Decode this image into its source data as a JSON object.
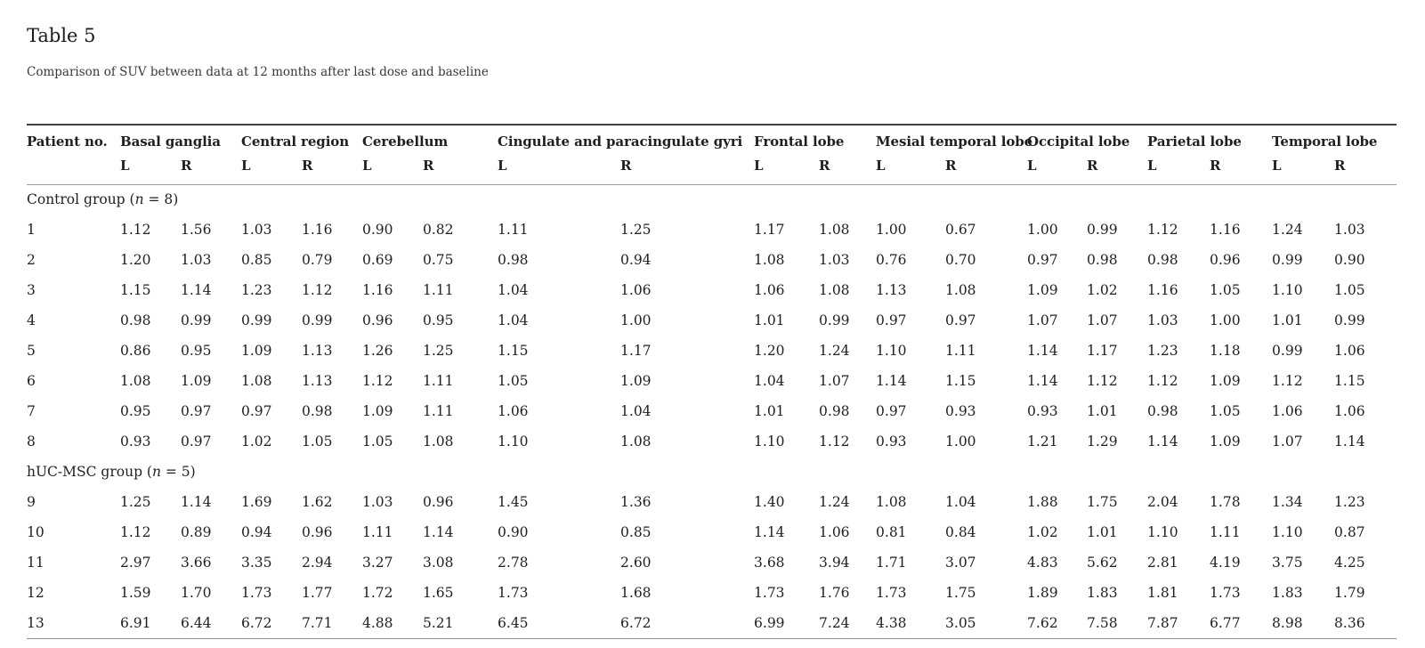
{
  "page": {
    "title": "Table 5",
    "caption": "Comparison of SUV between data at 12 months after last dose and baseline"
  },
  "table": {
    "patient_col_header": "Patient no.",
    "region_groups": [
      {
        "label": "Basal ganglia",
        "sub": [
          "L",
          "R"
        ]
      },
      {
        "label": "Central region",
        "sub": [
          "L",
          "R"
        ]
      },
      {
        "label": "Cerebellum",
        "sub": [
          "L",
          "R"
        ]
      },
      {
        "label": "Cingulate and paracingulate gyri",
        "sub": [
          "L",
          "R"
        ]
      },
      {
        "label": "Frontal lobe",
        "sub": [
          "L",
          "R"
        ]
      },
      {
        "label": "Mesial temporal lobe",
        "sub": [
          "L",
          "R"
        ]
      },
      {
        "label": "Occipital lobe",
        "sub": [
          "L",
          "R"
        ]
      },
      {
        "label": "Parietal lobe",
        "sub": [
          "L",
          "R"
        ]
      },
      {
        "label": "Temporal lobe",
        "sub": [
          "L",
          "R"
        ]
      }
    ],
    "groups": [
      {
        "label_prefix": "Control group (",
        "label_n": "n",
        "label_suffix": " = 8)",
        "rows": [
          [
            "1",
            "1.12",
            "1.56",
            "1.03",
            "1.16",
            "0.90",
            "0.82",
            "1.11",
            "1.25",
            "1.17",
            "1.08",
            "1.00",
            "0.67",
            "1.00",
            "0.99",
            "1.12",
            "1.16",
            "1.24",
            "1.03"
          ],
          [
            "2",
            "1.20",
            "1.03",
            "0.85",
            "0.79",
            "0.69",
            "0.75",
            "0.98",
            "0.94",
            "1.08",
            "1.03",
            "0.76",
            "0.70",
            "0.97",
            "0.98",
            "0.98",
            "0.96",
            "0.99",
            "0.90"
          ],
          [
            "3",
            "1.15",
            "1.14",
            "1.23",
            "1.12",
            "1.16",
            "1.11",
            "1.04",
            "1.06",
            "1.06",
            "1.08",
            "1.13",
            "1.08",
            "1.09",
            "1.02",
            "1.16",
            "1.05",
            "1.10",
            "1.05"
          ],
          [
            "4",
            "0.98",
            "0.99",
            "0.99",
            "0.99",
            "0.96",
            "0.95",
            "1.04",
            "1.00",
            "1.01",
            "0.99",
            "0.97",
            "0.97",
            "1.07",
            "1.07",
            "1.03",
            "1.00",
            "1.01",
            "0.99"
          ],
          [
            "5",
            "0.86",
            "0.95",
            "1.09",
            "1.13",
            "1.26",
            "1.25",
            "1.15",
            "1.17",
            "1.20",
            "1.24",
            "1.10",
            "1.11",
            "1.14",
            "1.17",
            "1.23",
            "1.18",
            "0.99",
            "1.06"
          ],
          [
            "6",
            "1.08",
            "1.09",
            "1.08",
            "1.13",
            "1.12",
            "1.11",
            "1.05",
            "1.09",
            "1.04",
            "1.07",
            "1.14",
            "1.15",
            "1.14",
            "1.12",
            "1.12",
            "1.09",
            "1.12",
            "1.15"
          ],
          [
            "7",
            "0.95",
            "0.97",
            "0.97",
            "0.98",
            "1.09",
            "1.11",
            "1.06",
            "1.04",
            "1.01",
            "0.98",
            "0.97",
            "0.93",
            "0.93",
            "1.01",
            "0.98",
            "1.05",
            "1.06",
            "1.06"
          ],
          [
            "8",
            "0.93",
            "0.97",
            "1.02",
            "1.05",
            "1.05",
            "1.08",
            "1.10",
            "1.08",
            "1.10",
            "1.12",
            "0.93",
            "1.00",
            "1.21",
            "1.29",
            "1.14",
            "1.09",
            "1.07",
            "1.14"
          ]
        ]
      },
      {
        "label_prefix": "hUC-MSC group (",
        "label_n": "n",
        "label_suffix": " = 5)",
        "rows": [
          [
            "9",
            "1.25",
            "1.14",
            "1.69",
            "1.62",
            "1.03",
            "0.96",
            "1.45",
            "1.36",
            "1.40",
            "1.24",
            "1.08",
            "1.04",
            "1.88",
            "1.75",
            "2.04",
            "1.78",
            "1.34",
            "1.23"
          ],
          [
            "10",
            "1.12",
            "0.89",
            "0.94",
            "0.96",
            "1.11",
            "1.14",
            "0.90",
            "0.85",
            "1.14",
            "1.06",
            "0.81",
            "0.84",
            "1.02",
            "1.01",
            "1.10",
            "1.11",
            "1.10",
            "0.87"
          ],
          [
            "11",
            "2.97",
            "3.66",
            "3.35",
            "2.94",
            "3.27",
            "3.08",
            "2.78",
            "2.60",
            "3.68",
            "3.94",
            "1.71",
            "3.07",
            "4.83",
            "5.62",
            "2.81",
            "4.19",
            "3.75",
            "4.25"
          ],
          [
            "12",
            "1.59",
            "1.70",
            "1.73",
            "1.77",
            "1.72",
            "1.65",
            "1.73",
            "1.68",
            "1.73",
            "1.76",
            "1.73",
            "1.75",
            "1.89",
            "1.83",
            "1.81",
            "1.73",
            "1.83",
            "1.79"
          ],
          [
            "13",
            "6.91",
            "6.44",
            "6.72",
            "7.71",
            "4.88",
            "5.21",
            "6.45",
            "6.72",
            "6.99",
            "7.24",
            "4.38",
            "3.05",
            "7.62",
            "7.58",
            "7.87",
            "6.77",
            "8.98",
            "8.36"
          ]
        ]
      }
    ]
  }
}
